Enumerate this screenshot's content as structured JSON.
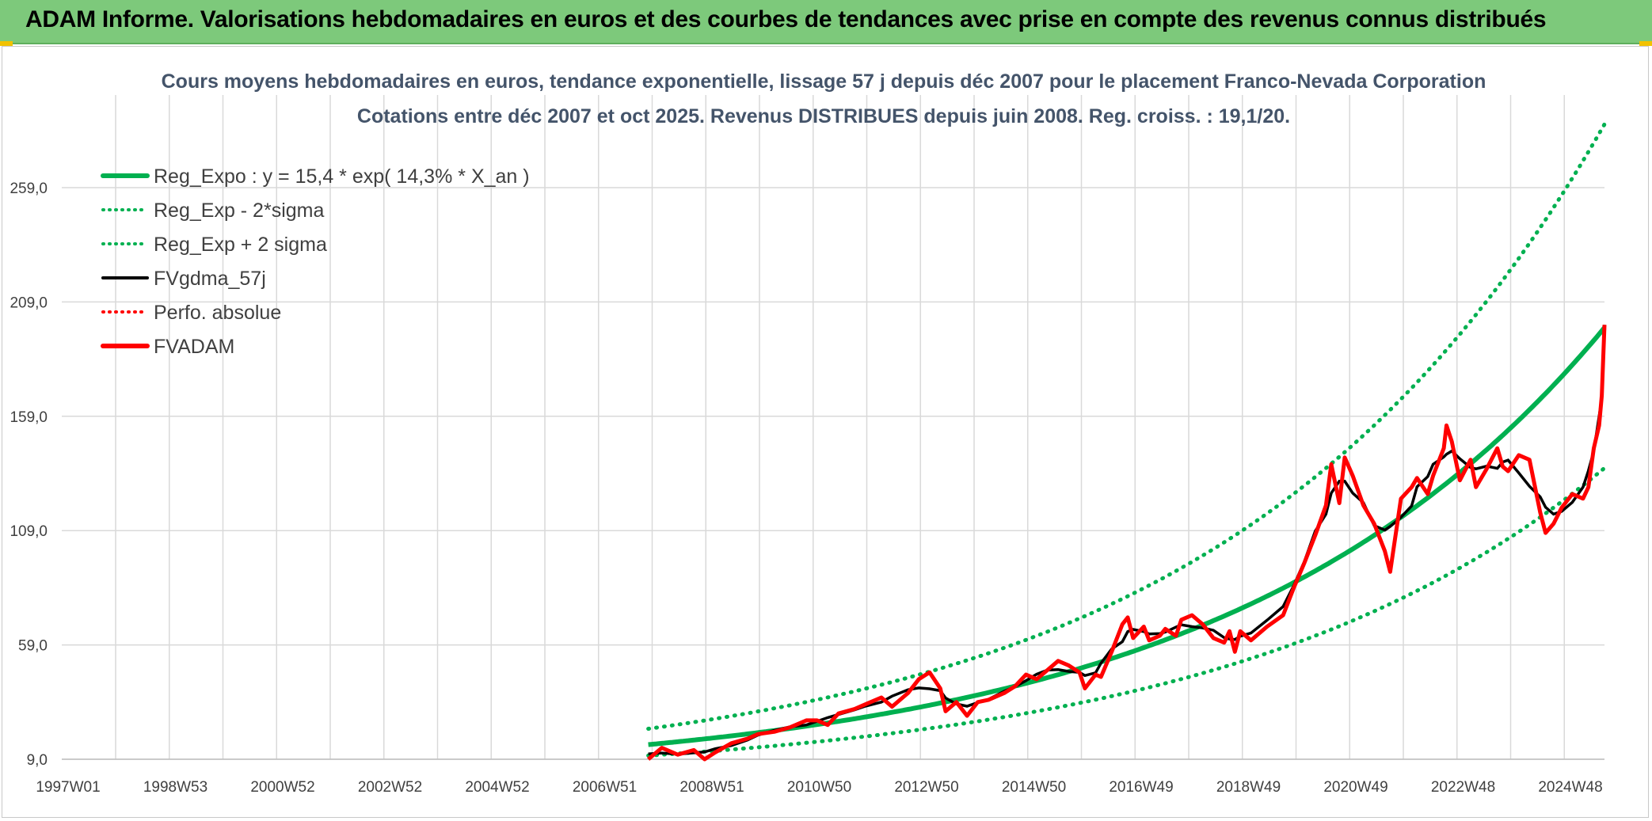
{
  "header": {
    "title": "ADAM Informe. Valorisations hebdomadaires en euros et des courbes de tendances avec prise en compte des revenus connus distribués"
  },
  "chart_data": {
    "type": "line",
    "title": "Cours moyens hebdomadaires en euros, tendance exponentielle, lissage 57 j depuis déc 2007 pour le placement Franco-Nevada Corporation",
    "subtitle": "Cotations entre déc 2007 et oct 2025. Revenus DISTRIBUES depuis juin 2008. Reg. croiss. : 19,1/20.",
    "x_tick_labels": [
      "1997W01",
      "1998W53",
      "2000W52",
      "2002W52",
      "2004W52",
      "2006W51",
      "2008W51",
      "2010W50",
      "2012W50",
      "2014W50",
      "2016W49",
      "2018W49",
      "2020W49",
      "2022W48",
      "2024W48"
    ],
    "y_tick_labels": [
      "9,0",
      "59,0",
      "109,0",
      "159,0",
      "209,0",
      "259,0"
    ],
    "xlim": [
      1997.0,
      2025.8
    ],
    "ylim": [
      9,
      300
    ],
    "grid": true,
    "legend_position": "top-left",
    "regression": {
      "a": 15.4,
      "rate": 0.143,
      "x0": 2007.95,
      "x_end": 2025.8,
      "sigma_factor": 1.45
    },
    "series": [
      {
        "name": "Reg_Expo : y = 15,4 * exp( 14,3% *  X_an )",
        "color": "#00b050",
        "style": "solid-thick"
      },
      {
        "name": "Reg_Exp - 2*sigma",
        "color": "#00b050",
        "style": "dotted"
      },
      {
        "name": "Reg_Exp + 2 sigma",
        "color": "#00b050",
        "style": "dotted"
      },
      {
        "name": "FVgdma_57j",
        "color": "#000000",
        "style": "solid"
      },
      {
        "name": "Perfo. absolue",
        "color": "#ff0000",
        "style": "dotted"
      },
      {
        "name": "FVADAM",
        "color": "#ff0000",
        "style": "solid-thick",
        "points": [
          [
            2007.95,
            9
          ],
          [
            2008.2,
            14
          ],
          [
            2008.5,
            11
          ],
          [
            2008.8,
            13
          ],
          [
            2009.0,
            9
          ],
          [
            2009.2,
            12
          ],
          [
            2009.5,
            16
          ],
          [
            2009.8,
            18
          ],
          [
            2010.0,
            20
          ],
          [
            2010.3,
            21
          ],
          [
            2010.6,
            23
          ],
          [
            2010.9,
            26
          ],
          [
            2011.1,
            26
          ],
          [
            2011.3,
            24
          ],
          [
            2011.5,
            29
          ],
          [
            2011.8,
            31
          ],
          [
            2012.0,
            33
          ],
          [
            2012.3,
            36
          ],
          [
            2012.5,
            32
          ],
          [
            2012.8,
            38
          ],
          [
            2013.0,
            44
          ],
          [
            2013.2,
            47
          ],
          [
            2013.4,
            40
          ],
          [
            2013.5,
            30
          ],
          [
            2013.7,
            34
          ],
          [
            2013.9,
            28
          ],
          [
            2014.1,
            34
          ],
          [
            2014.3,
            35
          ],
          [
            2014.6,
            38
          ],
          [
            2014.8,
            41
          ],
          [
            2015.0,
            46
          ],
          [
            2015.2,
            44
          ],
          [
            2015.4,
            48
          ],
          [
            2015.6,
            52
          ],
          [
            2015.8,
            50
          ],
          [
            2016.0,
            47
          ],
          [
            2016.1,
            40
          ],
          [
            2016.3,
            46
          ],
          [
            2016.4,
            45
          ],
          [
            2016.6,
            56
          ],
          [
            2016.8,
            68
          ],
          [
            2016.9,
            71
          ],
          [
            2017.0,
            62
          ],
          [
            2017.2,
            67
          ],
          [
            2017.3,
            61
          ],
          [
            2017.5,
            63
          ],
          [
            2017.6,
            66
          ],
          [
            2017.8,
            63
          ],
          [
            2017.9,
            70
          ],
          [
            2018.1,
            72
          ],
          [
            2018.3,
            68
          ],
          [
            2018.5,
            62
          ],
          [
            2018.7,
            60
          ],
          [
            2018.8,
            65
          ],
          [
            2018.9,
            56
          ],
          [
            2019.0,
            65
          ],
          [
            2019.2,
            61
          ],
          [
            2019.5,
            67
          ],
          [
            2019.8,
            72
          ],
          [
            2020.0,
            84
          ],
          [
            2020.2,
            95
          ],
          [
            2020.4,
            107
          ],
          [
            2020.6,
            120
          ],
          [
            2020.7,
            138
          ],
          [
            2020.85,
            121
          ],
          [
            2020.95,
            141
          ],
          [
            2021.1,
            133
          ],
          [
            2021.3,
            120
          ],
          [
            2021.5,
            112
          ],
          [
            2021.7,
            100
          ],
          [
            2021.8,
            91
          ],
          [
            2022.0,
            123
          ],
          [
            2022.2,
            128
          ],
          [
            2022.3,
            132
          ],
          [
            2022.5,
            125
          ],
          [
            2022.6,
            133
          ],
          [
            2022.8,
            145
          ],
          [
            2022.85,
            155
          ],
          [
            2022.95,
            148
          ],
          [
            2023.1,
            131
          ],
          [
            2023.3,
            140
          ],
          [
            2023.4,
            128
          ],
          [
            2023.6,
            136
          ],
          [
            2023.8,
            145
          ],
          [
            2023.9,
            137
          ],
          [
            2024.0,
            135
          ],
          [
            2024.2,
            142
          ],
          [
            2024.4,
            140
          ],
          [
            2024.6,
            117
          ],
          [
            2024.7,
            108
          ],
          [
            2024.85,
            112
          ],
          [
            2025.0,
            119
          ],
          [
            2025.2,
            125
          ],
          [
            2025.4,
            123
          ],
          [
            2025.5,
            128
          ],
          [
            2025.6,
            145
          ],
          [
            2025.7,
            155
          ],
          [
            2025.75,
            168
          ],
          [
            2025.8,
            199
          ]
        ]
      }
    ]
  }
}
